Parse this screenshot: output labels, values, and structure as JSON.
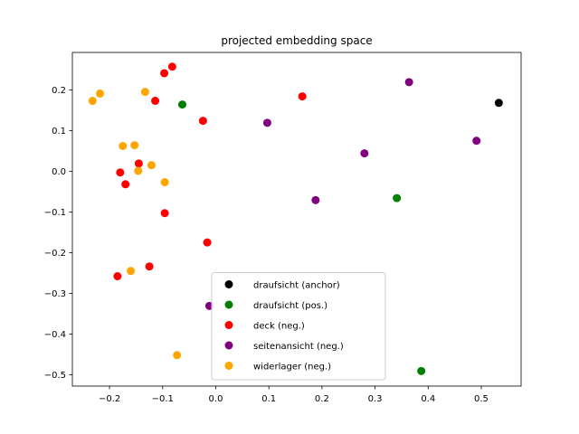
{
  "chart_data": {
    "type": "scatter",
    "title": "projected embedding space",
    "xlabel": "",
    "ylabel": "",
    "xlim": [
      -0.27,
      0.575
    ],
    "ylim": [
      -0.528,
      0.292
    ],
    "xticks": [
      -0.2,
      -0.1,
      0.0,
      0.1,
      0.2,
      0.3,
      0.4,
      0.5
    ],
    "xtick_labels": [
      "−0.2",
      "−0.1",
      "0.0",
      "0.1",
      "0.2",
      "0.3",
      "0.4",
      "0.5"
    ],
    "yticks": [
      -0.5,
      -0.4,
      -0.3,
      -0.2,
      -0.1,
      0.0,
      0.1,
      0.2
    ],
    "ytick_labels": [
      "−0.5",
      "−0.4",
      "−0.3",
      "−0.2",
      "−0.1",
      "0.0",
      "0.1",
      "0.2"
    ],
    "grid": false,
    "legend_position": "lower-center",
    "series": [
      {
        "name": "draufsicht (anchor)",
        "color": "#000000",
        "points": [
          [
            0.533,
            0.168
          ]
        ]
      },
      {
        "name": "draufsicht (pos.)",
        "color": "#008000",
        "points": [
          [
            -0.063,
            0.164
          ],
          [
            0.341,
            -0.066
          ],
          [
            0.387,
            -0.491
          ]
        ]
      },
      {
        "name": "deck (neg.)",
        "color": "#ff0000",
        "points": [
          [
            -0.082,
            0.257
          ],
          [
            -0.097,
            0.241
          ],
          [
            -0.114,
            0.173
          ],
          [
            0.163,
            0.184
          ],
          [
            -0.024,
            0.124
          ],
          [
            -0.18,
            -0.003
          ],
          [
            -0.145,
            0.019
          ],
          [
            -0.17,
            -0.032
          ],
          [
            -0.096,
            -0.103
          ],
          [
            -0.016,
            -0.175
          ],
          [
            -0.185,
            -0.258
          ],
          [
            -0.125,
            -0.234
          ]
        ]
      },
      {
        "name": "seitenansicht (neg.)",
        "color": "#800080",
        "points": [
          [
            0.364,
            0.219
          ],
          [
            0.097,
            0.119
          ],
          [
            0.491,
            0.075
          ],
          [
            0.28,
            0.044
          ],
          [
            0.188,
            -0.071
          ],
          [
            -0.012,
            -0.331
          ]
        ]
      },
      {
        "name": "widerlager (neg.)",
        "color": "#ffa500",
        "points": [
          [
            -0.232,
            0.173
          ],
          [
            -0.218,
            0.191
          ],
          [
            -0.133,
            0.195
          ],
          [
            -0.175,
            0.062
          ],
          [
            -0.153,
            0.064
          ],
          [
            -0.121,
            0.015
          ],
          [
            -0.146,
            0.001
          ],
          [
            -0.096,
            -0.027
          ],
          [
            -0.16,
            -0.245
          ],
          [
            -0.073,
            -0.452
          ]
        ]
      }
    ]
  }
}
